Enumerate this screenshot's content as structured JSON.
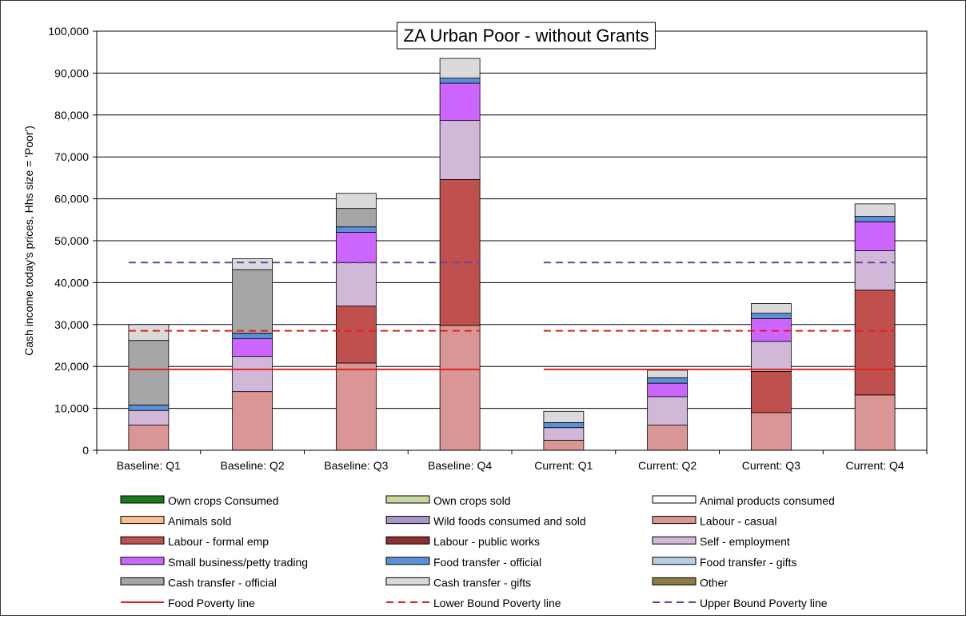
{
  "chart_data": {
    "type": "bar",
    "stacked": true,
    "title": "ZA Urban Poor - without Grants",
    "ylabel": "Cash income today's prices, Hhs size = 'Poor')",
    "xlabel": "",
    "ylim": [
      0,
      100000
    ],
    "yticks": [
      "0",
      "10,000",
      "20,000",
      "30,000",
      "40,000",
      "50,000",
      "60,000",
      "70,000",
      "80,000",
      "90,000",
      "100,000"
    ],
    "grid": true,
    "legend_position": "bottom",
    "categories": [
      "Baseline: Q1",
      "Baseline: Q2",
      "Baseline: Q3",
      "Baseline: Q4",
      "Current: Q1",
      "Current: Q2",
      "Current: Q3",
      "Current: Q4"
    ],
    "series": [
      {
        "name": "Own crops Consumed",
        "color": "#1a7a1a",
        "values": [
          0,
          0,
          0,
          0,
          0,
          0,
          0,
          0
        ]
      },
      {
        "name": "Own crops sold",
        "color": "#c8d8a0",
        "values": [
          0,
          0,
          0,
          0,
          0,
          0,
          0,
          0
        ]
      },
      {
        "name": "Animal products consumed",
        "color": "#ffffff",
        "values": [
          0,
          0,
          0,
          0,
          0,
          0,
          0,
          0
        ]
      },
      {
        "name": "Animals sold",
        "color": "#f8c090",
        "values": [
          0,
          0,
          0,
          0,
          0,
          0,
          0,
          0
        ]
      },
      {
        "name": "Wild foods consumed and sold",
        "color": "#a898c8",
        "values": [
          0,
          0,
          0,
          0,
          0,
          0,
          0,
          0
        ]
      },
      {
        "name": "Labour - casual",
        "color": "#da9694",
        "values": [
          6000,
          14000,
          20800,
          29800,
          2400,
          6000,
          9000,
          13200
        ]
      },
      {
        "name": "Labour - formal emp",
        "color": "#c0504d",
        "values": [
          0,
          0,
          13600,
          34800,
          0,
          0,
          9800,
          25000
        ]
      },
      {
        "name": "Labour - public works",
        "color": "#8b3030",
        "values": [
          0,
          0,
          0,
          0,
          0,
          0,
          0,
          0
        ]
      },
      {
        "name": "Self - employment",
        "color": "#d2b8d8",
        "values": [
          3500,
          8400,
          10400,
          14100,
          3000,
          6800,
          7200,
          9400
        ]
      },
      {
        "name": "Small business/petty trading",
        "color": "#cc66ff",
        "values": [
          0,
          4200,
          7200,
          8900,
          0,
          3200,
          5400,
          6900
        ]
      },
      {
        "name": "Food transfer - official",
        "color": "#5b8fd6",
        "values": [
          1300,
          1300,
          1300,
          1200,
          1200,
          1300,
          1300,
          1300
        ]
      },
      {
        "name": "Food transfer - gifts",
        "color": "#b8cce4",
        "values": [
          0,
          0,
          0,
          0,
          0,
          0,
          0,
          0
        ]
      },
      {
        "name": "Cash transfer - official",
        "color": "#a6a6a6",
        "values": [
          15400,
          15200,
          4400,
          0,
          0,
          0,
          0,
          0
        ]
      },
      {
        "name": "Cash transfer - gifts",
        "color": "#dadada",
        "values": [
          3800,
          2600,
          3600,
          4700,
          2700,
          1800,
          2300,
          3000
        ]
      },
      {
        "name": "Other",
        "color": "#8c7b42",
        "values": [
          0,
          0,
          0,
          0,
          0,
          0,
          0,
          0
        ]
      }
    ],
    "lines": [
      {
        "name": "Food Poverty line",
        "color": "#e02020",
        "style": "solid",
        "groups": [
          {
            "from": "Baseline: Q1",
            "to": "Baseline: Q4",
            "value": 19300
          },
          {
            "from": "Current: Q1",
            "to": "Current: Q4",
            "value": 19300
          }
        ]
      },
      {
        "name": "Lower Bound Poverty line",
        "color": "#e02020",
        "style": "dashed",
        "groups": [
          {
            "from": "Baseline: Q1",
            "to": "Baseline: Q4",
            "value": 28500
          },
          {
            "from": "Current: Q1",
            "to": "Current: Q4",
            "value": 28500
          }
        ]
      },
      {
        "name": "Upper Bound Poverty line",
        "color": "#7040a0",
        "style": "dashed",
        "groups": [
          {
            "from": "Baseline: Q1",
            "to": "Baseline: Q4",
            "value": 44800
          },
          {
            "from": "Current: Q1",
            "to": "Current: Q4",
            "value": 44800
          }
        ]
      }
    ]
  }
}
